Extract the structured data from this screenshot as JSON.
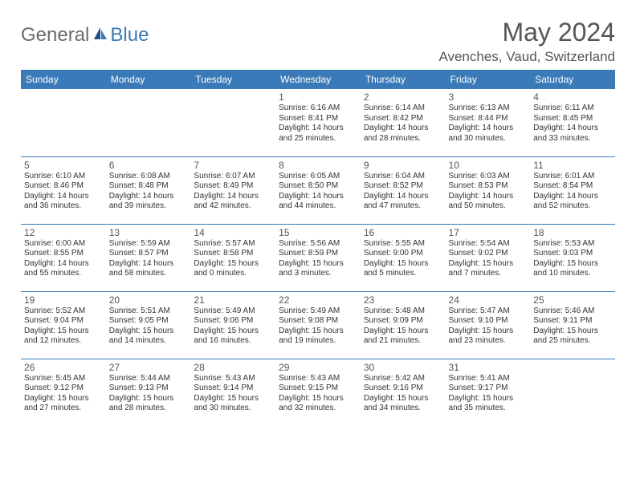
{
  "logo": {
    "general": "General",
    "blue": "Blue"
  },
  "title": "May 2024",
  "location": "Avenches, Vaud, Switzerland",
  "colors": {
    "header_bg": "#3a7ab8",
    "header_text": "#ffffff",
    "text": "#333333",
    "muted": "#555555",
    "logo_gray": "#6b6b6b",
    "logo_blue": "#3a7ab8",
    "border": "#3a7ab8",
    "background": "#ffffff"
  },
  "day_headers": [
    "Sunday",
    "Monday",
    "Tuesday",
    "Wednesday",
    "Thursday",
    "Friday",
    "Saturday"
  ],
  "weeks": [
    [
      null,
      null,
      null,
      {
        "n": "1",
        "sr": "6:16 AM",
        "ss": "8:41 PM",
        "dl": "14 hours and 25 minutes."
      },
      {
        "n": "2",
        "sr": "6:14 AM",
        "ss": "8:42 PM",
        "dl": "14 hours and 28 minutes."
      },
      {
        "n": "3",
        "sr": "6:13 AM",
        "ss": "8:44 PM",
        "dl": "14 hours and 30 minutes."
      },
      {
        "n": "4",
        "sr": "6:11 AM",
        "ss": "8:45 PM",
        "dl": "14 hours and 33 minutes."
      }
    ],
    [
      {
        "n": "5",
        "sr": "6:10 AM",
        "ss": "8:46 PM",
        "dl": "14 hours and 36 minutes."
      },
      {
        "n": "6",
        "sr": "6:08 AM",
        "ss": "8:48 PM",
        "dl": "14 hours and 39 minutes."
      },
      {
        "n": "7",
        "sr": "6:07 AM",
        "ss": "8:49 PM",
        "dl": "14 hours and 42 minutes."
      },
      {
        "n": "8",
        "sr": "6:05 AM",
        "ss": "8:50 PM",
        "dl": "14 hours and 44 minutes."
      },
      {
        "n": "9",
        "sr": "6:04 AM",
        "ss": "8:52 PM",
        "dl": "14 hours and 47 minutes."
      },
      {
        "n": "10",
        "sr": "6:03 AM",
        "ss": "8:53 PM",
        "dl": "14 hours and 50 minutes."
      },
      {
        "n": "11",
        "sr": "6:01 AM",
        "ss": "8:54 PM",
        "dl": "14 hours and 52 minutes."
      }
    ],
    [
      {
        "n": "12",
        "sr": "6:00 AM",
        "ss": "8:55 PM",
        "dl": "14 hours and 55 minutes."
      },
      {
        "n": "13",
        "sr": "5:59 AM",
        "ss": "8:57 PM",
        "dl": "14 hours and 58 minutes."
      },
      {
        "n": "14",
        "sr": "5:57 AM",
        "ss": "8:58 PM",
        "dl": "15 hours and 0 minutes."
      },
      {
        "n": "15",
        "sr": "5:56 AM",
        "ss": "8:59 PM",
        "dl": "15 hours and 3 minutes."
      },
      {
        "n": "16",
        "sr": "5:55 AM",
        "ss": "9:00 PM",
        "dl": "15 hours and 5 minutes."
      },
      {
        "n": "17",
        "sr": "5:54 AM",
        "ss": "9:02 PM",
        "dl": "15 hours and 7 minutes."
      },
      {
        "n": "18",
        "sr": "5:53 AM",
        "ss": "9:03 PM",
        "dl": "15 hours and 10 minutes."
      }
    ],
    [
      {
        "n": "19",
        "sr": "5:52 AM",
        "ss": "9:04 PM",
        "dl": "15 hours and 12 minutes."
      },
      {
        "n": "20",
        "sr": "5:51 AM",
        "ss": "9:05 PM",
        "dl": "15 hours and 14 minutes."
      },
      {
        "n": "21",
        "sr": "5:49 AM",
        "ss": "9:06 PM",
        "dl": "15 hours and 16 minutes."
      },
      {
        "n": "22",
        "sr": "5:49 AM",
        "ss": "9:08 PM",
        "dl": "15 hours and 19 minutes."
      },
      {
        "n": "23",
        "sr": "5:48 AM",
        "ss": "9:09 PM",
        "dl": "15 hours and 21 minutes."
      },
      {
        "n": "24",
        "sr": "5:47 AM",
        "ss": "9:10 PM",
        "dl": "15 hours and 23 minutes."
      },
      {
        "n": "25",
        "sr": "5:46 AM",
        "ss": "9:11 PM",
        "dl": "15 hours and 25 minutes."
      }
    ],
    [
      {
        "n": "26",
        "sr": "5:45 AM",
        "ss": "9:12 PM",
        "dl": "15 hours and 27 minutes."
      },
      {
        "n": "27",
        "sr": "5:44 AM",
        "ss": "9:13 PM",
        "dl": "15 hours and 28 minutes."
      },
      {
        "n": "28",
        "sr": "5:43 AM",
        "ss": "9:14 PM",
        "dl": "15 hours and 30 minutes."
      },
      {
        "n": "29",
        "sr": "5:43 AM",
        "ss": "9:15 PM",
        "dl": "15 hours and 32 minutes."
      },
      {
        "n": "30",
        "sr": "5:42 AM",
        "ss": "9:16 PM",
        "dl": "15 hours and 34 minutes."
      },
      {
        "n": "31",
        "sr": "5:41 AM",
        "ss": "9:17 PM",
        "dl": "15 hours and 35 minutes."
      },
      null
    ]
  ],
  "labels": {
    "sunrise": "Sunrise:",
    "sunset": "Sunset:",
    "daylight": "Daylight:"
  }
}
